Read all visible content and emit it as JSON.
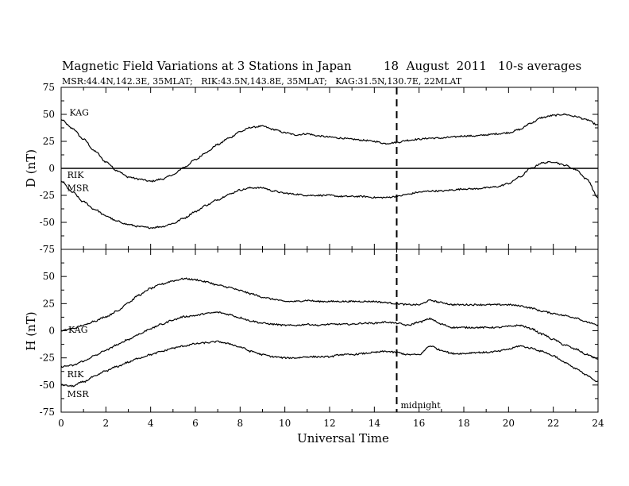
{
  "header": {
    "title": "Magnetic Field Variations at 3 Stations in Japan",
    "date": "18  August  2011",
    "averaging": "10-s averages",
    "stations": "MSR:44.4N,142.3E, 35MLAT;   RIK:43.5N,143.8E, 35MLAT;   KAG:31.5N,130.7E, 22MLAT"
  },
  "chart_data": [
    {
      "type": "line",
      "panel": "D",
      "ylabel": "D (nT)",
      "xlim": [
        0,
        24
      ],
      "ylim": [
        -75,
        75
      ],
      "yticks": [
        75,
        50,
        25,
        0,
        -25,
        -50,
        -75
      ],
      "zero_line": true,
      "series": [
        {
          "name": "KAG",
          "x": [
            0,
            0.5,
            1,
            1.5,
            2,
            2.5,
            3,
            3.5,
            4,
            4.5,
            5,
            5.5,
            6,
            6.5,
            7,
            7.5,
            8,
            8.5,
            9,
            9.5,
            10,
            10.5,
            11,
            11.5,
            12,
            12.5,
            13,
            13.5,
            14,
            14.5,
            15,
            15.5,
            16,
            16.5,
            17,
            17.5,
            18,
            18.5,
            19,
            19.5,
            20,
            20.5,
            21,
            21.5,
            22,
            22.5,
            23,
            23.5,
            24
          ],
          "values": [
            45,
            37,
            27,
            16,
            6,
            -2,
            -8,
            -10,
            -12,
            -10,
            -6,
            1,
            8,
            15,
            22,
            28,
            34,
            38,
            39,
            36,
            33,
            31,
            32,
            30,
            29,
            28,
            27,
            26,
            25,
            23,
            24,
            26,
            27,
            28,
            28,
            29,
            30,
            30,
            31,
            32,
            33,
            36,
            42,
            47,
            49,
            50,
            48,
            45,
            40
          ]
        },
        {
          "name": "RIK",
          "x": [
            0,
            0.5,
            1,
            1.5,
            2,
            2.5,
            3,
            3.5,
            4,
            4.5,
            5,
            5.5,
            6,
            6.5,
            7,
            7.5,
            8,
            8.5,
            9,
            9.5,
            10,
            10.5,
            11,
            11.5,
            12,
            12.5,
            13,
            13.5,
            14,
            14.5,
            15,
            15.5,
            16,
            16.5,
            17,
            17.5,
            18,
            18.5,
            19,
            19.5,
            20,
            20.5,
            21,
            21.5,
            22,
            22.5,
            23,
            23.5,
            24
          ],
          "values": [
            -12,
            -22,
            -31,
            -38,
            -44,
            -49,
            -52,
            -54,
            -55,
            -54,
            -51,
            -46,
            -40,
            -34,
            -29,
            -24,
            -20,
            -18,
            -18,
            -21,
            -23,
            -24,
            -25,
            -25,
            -25,
            -26,
            -26,
            -26,
            -27,
            -27,
            -26,
            -24,
            -22,
            -21,
            -21,
            -20,
            -19,
            -19,
            -18,
            -17,
            -14,
            -8,
            0,
            5,
            6,
            3,
            -1,
            -10,
            -27
          ]
        }
      ],
      "labels": [
        "KAG",
        "RIK",
        "MSR"
      ]
    },
    {
      "type": "line",
      "panel": "H",
      "ylabel": "H (nT)",
      "xlabel": "Universal Time",
      "xlim": [
        0,
        24
      ],
      "ylim": [
        -75,
        75
      ],
      "xticks": [
        0,
        2,
        4,
        6,
        8,
        10,
        12,
        14,
        16,
        18,
        20,
        22,
        24
      ],
      "yticks": [
        75,
        50,
        25,
        0,
        -25,
        -50,
        -75
      ],
      "series": [
        {
          "name": "KAG",
          "x": [
            0,
            0.5,
            1,
            1.5,
            2,
            2.5,
            3,
            3.5,
            4,
            4.5,
            5,
            5.5,
            6,
            6.5,
            7,
            7.5,
            8,
            8.5,
            9,
            9.5,
            10,
            10.5,
            11,
            11.5,
            12,
            12.5,
            13,
            13.5,
            14,
            14.5,
            15,
            15.5,
            16,
            16.5,
            17,
            17.5,
            18,
            18.5,
            19,
            19.5,
            20,
            20.5,
            21,
            21.5,
            22,
            22.5,
            23,
            23.5,
            24
          ],
          "values": [
            0,
            2,
            5,
            9,
            13,
            18,
            26,
            33,
            39,
            43,
            46,
            48,
            47,
            45,
            42,
            40,
            37,
            34,
            31,
            29,
            27,
            27,
            28,
            27,
            27,
            27,
            27,
            27,
            27,
            26,
            25,
            24,
            24,
            28,
            26,
            24,
            24,
            24,
            24,
            24,
            24,
            23,
            21,
            18,
            16,
            14,
            12,
            8,
            5
          ]
        },
        {
          "name": "RIK",
          "x": [
            0,
            0.5,
            1,
            1.5,
            2,
            2.5,
            3,
            3.5,
            4,
            4.5,
            5,
            5.5,
            6,
            6.5,
            7,
            7.5,
            8,
            8.5,
            9,
            9.5,
            10,
            10.5,
            11,
            11.5,
            12,
            12.5,
            13,
            13.5,
            14,
            14.5,
            15,
            15.5,
            16,
            16.5,
            17,
            17.5,
            18,
            18.5,
            19,
            19.5,
            20,
            20.5,
            21,
            21.5,
            22,
            22.5,
            23,
            23.5,
            24
          ],
          "values": [
            -33,
            -32,
            -28,
            -23,
            -18,
            -13,
            -8,
            -3,
            2,
            6,
            10,
            13,
            14,
            16,
            17,
            15,
            12,
            9,
            7,
            6,
            5,
            5,
            6,
            5,
            6,
            6,
            6,
            7,
            7,
            8,
            7,
            5,
            8,
            11,
            6,
            3,
            3,
            3,
            3,
            3,
            4,
            5,
            2,
            -3,
            -8,
            -13,
            -17,
            -22,
            -26
          ]
        },
        {
          "name": "MSR",
          "x": [
            0,
            0.5,
            1,
            1.5,
            2,
            2.5,
            3,
            3.5,
            4,
            4.5,
            5,
            5.5,
            6,
            6.5,
            7,
            7.5,
            8,
            8.5,
            9,
            9.5,
            10,
            10.5,
            11,
            11.5,
            12,
            12.5,
            13,
            13.5,
            14,
            14.5,
            15,
            15.5,
            16,
            16.5,
            17,
            17.5,
            18,
            18.5,
            19,
            19.5,
            20,
            20.5,
            21,
            21.5,
            22,
            22.5,
            23,
            23.5,
            24
          ],
          "values": [
            -50,
            -51,
            -47,
            -42,
            -37,
            -33,
            -29,
            -25,
            -22,
            -19,
            -16,
            -14,
            -12,
            -11,
            -10,
            -12,
            -15,
            -19,
            -22,
            -24,
            -25,
            -25,
            -24,
            -24,
            -24,
            -22,
            -22,
            -21,
            -20,
            -19,
            -20,
            -22,
            -22,
            -14,
            -18,
            -21,
            -21,
            -20,
            -20,
            -19,
            -17,
            -14,
            -16,
            -19,
            -23,
            -29,
            -35,
            -41,
            -47
          ]
        }
      ],
      "labels": [
        "KAG",
        "RIK",
        "MSR"
      ],
      "annotation": "midnight"
    }
  ],
  "midnight_marker": {
    "x": 15,
    "label": "midnight"
  }
}
